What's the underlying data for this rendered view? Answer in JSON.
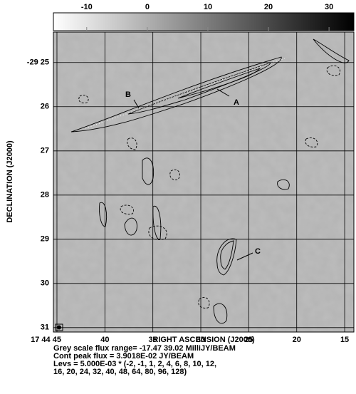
{
  "chart_data": {
    "type": "image",
    "xlabel": "RIGHT ASCENSION (J2000)",
    "ylabel": "DECLINATION (J2000)",
    "xlim": [
      45.37,
      14.04
    ],
    "xticks": [
      {
        "value": 45,
        "label": "17 44 45"
      },
      40,
      35,
      30,
      25,
      20,
      15
    ],
    "ylim": [
      24.31,
      31.1
    ],
    "yticks": [
      {
        "value": 25,
        "label": "-29 25"
      },
      26,
      27,
      28,
      29,
      30,
      31
    ],
    "grid": true,
    "colorbar": {
      "lim": [
        -15.5,
        34.1
      ],
      "ticks": [
        -10,
        0,
        10,
        20,
        30
      ]
    },
    "annotations": [
      "A",
      "B",
      "C"
    ],
    "caption": [
      "Grey scale flux range= -17.47 39.02 MilliJY/BEAM",
      "Cont peak flux =  3.9018E-02 JY/BEAM",
      "Levs = 5.000E-03 * (-2, -1, 1, 2, 4, 6, 8, 10, 12,",
      "16, 20, 24, 32, 40, 48, 64, 80, 96, 128)"
    ]
  }
}
